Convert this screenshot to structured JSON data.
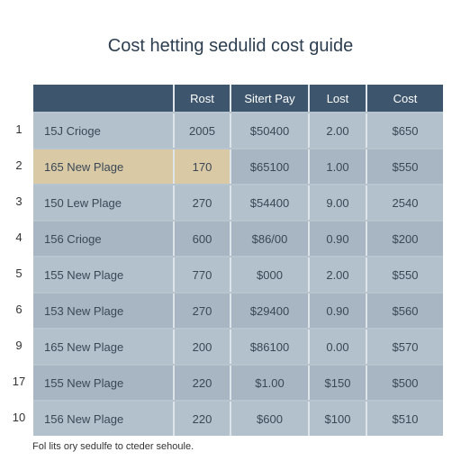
{
  "title": "Cost hetting sedulid cost guide",
  "columns": [
    "",
    "Rost",
    "Sitert Pay",
    "Lost",
    "Cost"
  ],
  "rows": [
    {
      "num": "1",
      "cells": [
        "15J Crioge",
        "2005",
        "$50400",
        "2.00",
        "$650"
      ]
    },
    {
      "num": "2",
      "cells": [
        "165 New Plage",
        "170",
        "$65100",
        "1.00",
        "$550"
      ]
    },
    {
      "num": "3",
      "cells": [
        "150 Lew Plage",
        "270",
        "$54400",
        "9.00",
        "2540"
      ]
    },
    {
      "num": "4",
      "cells": [
        "156 Crioge",
        "600",
        "$86/00",
        "0.90",
        "$200"
      ]
    },
    {
      "num": "5",
      "cells": [
        "155 New Plage",
        "770",
        "$000",
        "2.00",
        "$550"
      ]
    },
    {
      "num": "6",
      "cells": [
        "153 New Plage",
        "270",
        "$29400",
        "0.90",
        "$560"
      ]
    },
    {
      "num": "9",
      "cells": [
        "165 New Plage",
        "200",
        "$86100",
        "0.00",
        "$570"
      ]
    },
    {
      "num": "17",
      "cells": [
        "155 New Plage",
        "220",
        "$1.00",
        "$150",
        "$500"
      ]
    },
    {
      "num": "10",
      "cells": [
        "156 New Plage",
        "220",
        "$600",
        "$100",
        "$510"
      ]
    }
  ],
  "footnote": "Fol lits ory sedulfe to cteder sehoule."
}
